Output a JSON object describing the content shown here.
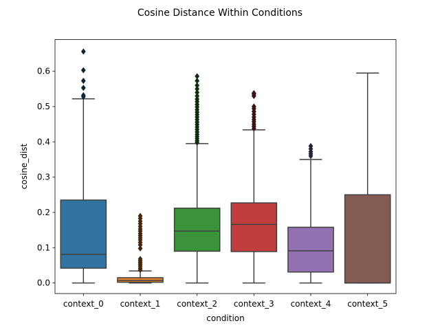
{
  "chart_data": {
    "type": "box",
    "title": "Cosine Distance Within Conditions",
    "xlabel": "condition",
    "ylabel": "cosine_dist",
    "ylim": [
      -0.03,
      0.69
    ],
    "yticks": [
      0.0,
      0.1,
      0.2,
      0.3,
      0.4,
      0.5,
      0.6
    ],
    "ytick_labels": [
      "0.0",
      "0.1",
      "0.2",
      "0.3",
      "0.4",
      "0.5",
      "0.6"
    ],
    "grid": false,
    "categories": [
      "context_0",
      "context_1",
      "context_2",
      "context_3",
      "context_4",
      "context_5"
    ],
    "boxes": [
      {
        "category": "context_0",
        "color": "#3274a1",
        "whisker_low": 0.0,
        "q1": 0.042,
        "median": 0.081,
        "q3": 0.235,
        "whisker_high": 0.522,
        "outliers": [
          0.528,
          0.532,
          0.553,
          0.573,
          0.603,
          0.656
        ]
      },
      {
        "category": "context_1",
        "color": "#e1812c",
        "whisker_low": 0.0,
        "q1": 0.002,
        "median": 0.007,
        "q3": 0.015,
        "whisker_high": 0.034,
        "outliers": [
          0.037,
          0.042,
          0.048,
          0.053,
          0.058,
          0.063,
          0.068,
          0.098,
          0.108,
          0.115,
          0.122,
          0.128,
          0.134,
          0.14,
          0.147,
          0.153,
          0.16,
          0.168,
          0.175,
          0.183,
          0.19
        ]
      },
      {
        "category": "context_2",
        "color": "#3a923a",
        "whisker_low": 0.0,
        "q1": 0.09,
        "median": 0.147,
        "q3": 0.212,
        "whisker_high": 0.395,
        "outliers": [
          0.398,
          0.403,
          0.409,
          0.415,
          0.421,
          0.428,
          0.435,
          0.442,
          0.449,
          0.456,
          0.463,
          0.47,
          0.477,
          0.484,
          0.491,
          0.499,
          0.506,
          0.514,
          0.521,
          0.53,
          0.54,
          0.55,
          0.56,
          0.573,
          0.586
        ]
      },
      {
        "category": "context_3",
        "color": "#c03d3e",
        "whisker_low": 0.0,
        "q1": 0.089,
        "median": 0.166,
        "q3": 0.227,
        "whisker_high": 0.434,
        "outliers": [
          0.438,
          0.444,
          0.45,
          0.457,
          0.463,
          0.47,
          0.478,
          0.486,
          0.494,
          0.5,
          0.53,
          0.535,
          0.538
        ]
      },
      {
        "category": "context_4",
        "color": "#9372b2",
        "whisker_low": 0.0,
        "q1": 0.031,
        "median": 0.091,
        "q3": 0.158,
        "whisker_high": 0.35,
        "outliers": [
          0.36,
          0.366,
          0.372,
          0.38,
          0.388
        ]
      },
      {
        "category": "context_5",
        "color": "#845b53",
        "whisker_low": 0.0,
        "q1": 0.0,
        "median": 0.0,
        "q3": 0.25,
        "whisker_high": 0.595,
        "outliers": []
      }
    ]
  }
}
